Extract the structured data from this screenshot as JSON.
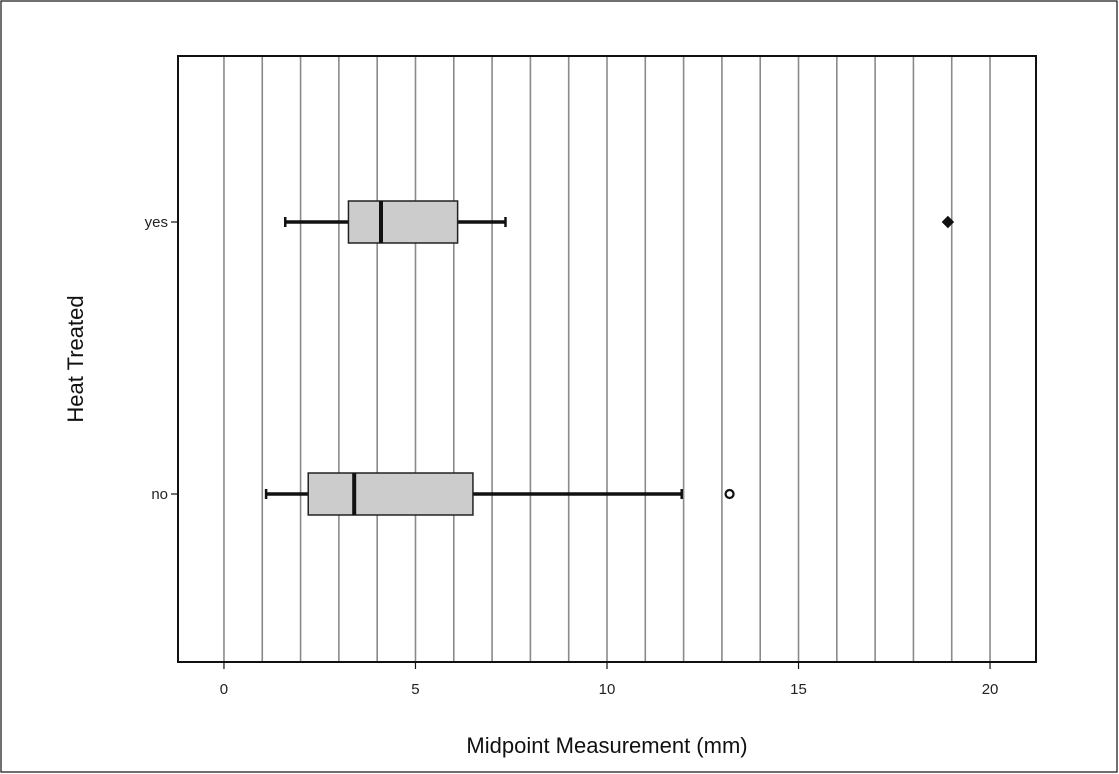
{
  "chart_data": {
    "type": "boxplot",
    "orientation": "horizontal",
    "title": "",
    "xlabel": "Midpoint Measurement (mm)",
    "ylabel": "Heat Treated",
    "xlim": [
      -1.2,
      21.2
    ],
    "x_ticks": [
      0,
      5,
      10,
      15,
      20
    ],
    "x_gridlines": [
      0,
      1,
      2,
      3,
      4,
      5,
      6,
      7,
      8,
      9,
      10,
      11,
      12,
      13,
      14,
      15,
      16,
      17,
      18,
      19,
      20
    ],
    "grid": true,
    "legend": "none",
    "categories": [
      "yes",
      "no"
    ],
    "series": [
      {
        "category": "yes",
        "whisker_low": 1.6,
        "q1": 3.25,
        "median": 4.1,
        "q3": 6.1,
        "whisker_high": 7.35,
        "outliers": [
          {
            "x": 18.9,
            "marker": "filled-diamond"
          }
        ]
      },
      {
        "category": "no",
        "whisker_low": 1.1,
        "q1": 2.2,
        "median": 3.4,
        "q3": 6.5,
        "whisker_high": 11.95,
        "outliers": [
          {
            "x": 13.2,
            "marker": "open-circle"
          }
        ]
      }
    ],
    "colors": {
      "box_fill": "#cccccc",
      "grid": "#8a8a8a",
      "ink": "#111111"
    }
  }
}
